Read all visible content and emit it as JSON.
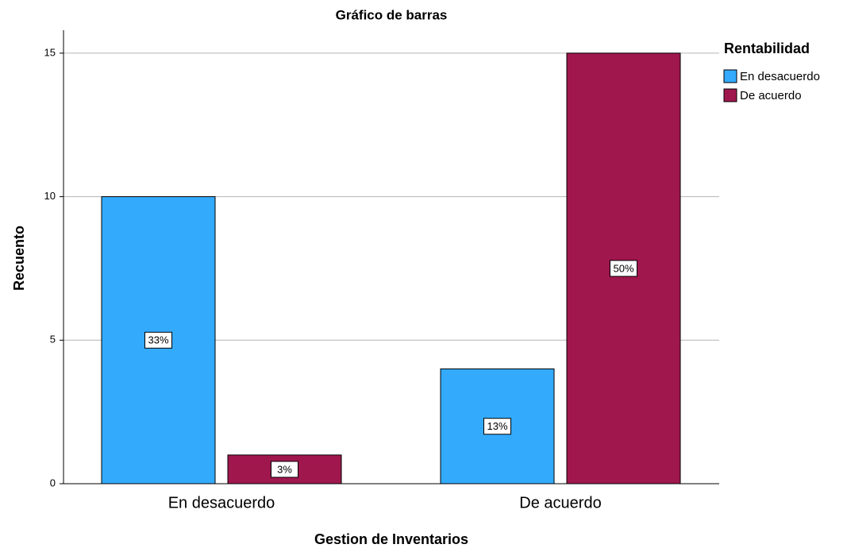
{
  "chart_data": {
    "type": "bar",
    "title": "Gráfico de barras",
    "x_label": "Gestion de Inventarios",
    "y_label": "Recuento",
    "categories": [
      "En desacuerdo",
      "De acuerdo"
    ],
    "legend_title": "Rentabilidad",
    "legend": "right",
    "series": [
      {
        "name": "En desacuerdo",
        "color": "#33aafc",
        "values": [
          10,
          4
        ],
        "value_labels": [
          "33%",
          "13%"
        ]
      },
      {
        "name": "De acuerdo",
        "color": "#a0174e",
        "values": [
          1,
          15
        ],
        "value_labels": [
          "3%",
          "50%"
        ]
      }
    ],
    "ylim": [
      0,
      15.8
    ],
    "yticks": [
      0,
      5,
      10,
      15
    ],
    "grid": true
  }
}
